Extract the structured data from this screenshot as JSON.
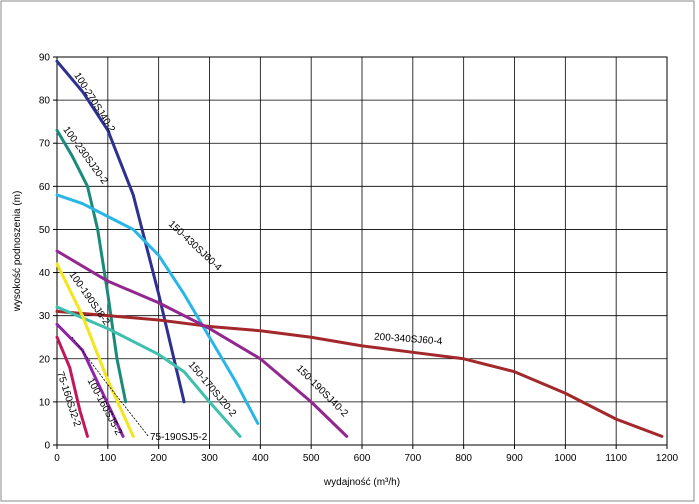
{
  "chart_data": {
    "type": "line",
    "xlabel": "wydajność (m³/h)",
    "ylabel": "wysokość podnoszenia (m)",
    "xlim": [
      0,
      1200
    ],
    "xticks": [
      0,
      100,
      200,
      300,
      400,
      500,
      600,
      700,
      800,
      900,
      1000,
      1100,
      1200
    ],
    "ylim": [
      0,
      90
    ],
    "yticks": [
      0,
      10,
      20,
      30,
      40,
      50,
      60,
      70,
      80,
      90
    ],
    "grid": true,
    "series": [
      {
        "name": "100-270SJ40-2",
        "color": "#2e3192",
        "x": [
          0,
          50,
          100,
          150,
          200,
          230,
          250
        ],
        "values": [
          89,
          82,
          73,
          58,
          35,
          20,
          10
        ]
      },
      {
        "name": "100-230SJ20-2",
        "color": "#1a8a7a",
        "x": [
          0,
          30,
          60,
          80,
          100,
          118,
          135
        ],
        "values": [
          73,
          67,
          60,
          50,
          35,
          20,
          10
        ]
      },
      {
        "name": "150-430SJ60-4",
        "color": "#29b6e6",
        "x": [
          0,
          50,
          100,
          150,
          200,
          250,
          300,
          350,
          395
        ],
        "values": [
          58,
          56,
          53,
          50,
          44,
          35,
          25,
          15,
          5
        ]
      },
      {
        "name": "200-340SJ60-4",
        "color": "#a3282c",
        "x": [
          0,
          100,
          200,
          300,
          400,
          500,
          600,
          700,
          800,
          900,
          1000,
          1100,
          1190
        ],
        "values": [
          31,
          30,
          29,
          27.5,
          26.5,
          25,
          23,
          21.5,
          20,
          17,
          12,
          6,
          2
        ]
      },
      {
        "name": "150-190SJ40-2",
        "color": "#92278f",
        "x": [
          0,
          100,
          200,
          300,
          400,
          450,
          500,
          570
        ],
        "values": [
          45,
          38,
          33,
          27,
          20,
          15,
          10,
          2
        ]
      },
      {
        "name": "150-170SJ20-2",
        "color": "#3fbfad",
        "x": [
          0,
          100,
          200,
          250,
          300,
          360
        ],
        "values": [
          32,
          27,
          21,
          17,
          10,
          2
        ]
      },
      {
        "name": "100-190SJ8-2",
        "color": "#f5e51b",
        "x": [
          0,
          50,
          100,
          150
        ],
        "values": [
          42,
          30,
          15,
          2
        ]
      },
      {
        "name": "100-160SJ5-2",
        "color": "#8e24aa",
        "x": [
          0,
          50,
          90,
          130
        ],
        "values": [
          28,
          22,
          12,
          2
        ]
      },
      {
        "name": "75-160SJ2-2",
        "color": "#c2185b",
        "x": [
          0,
          25,
          45,
          60
        ],
        "values": [
          25,
          18,
          8,
          2
        ]
      },
      {
        "name": "75-190SJ5-2",
        "color": "#000000",
        "x": [
          30,
          100,
          180
        ],
        "values": [
          25,
          14,
          2
        ],
        "dashed": true
      }
    ]
  }
}
